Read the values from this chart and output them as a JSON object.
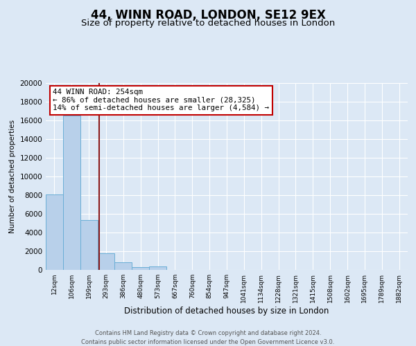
{
  "title": "44, WINN ROAD, LONDON, SE12 9EX",
  "subtitle": "Size of property relative to detached houses in London",
  "xlabel": "Distribution of detached houses by size in London",
  "ylabel": "Number of detached properties",
  "categories": [
    "12sqm",
    "106sqm",
    "199sqm",
    "293sqm",
    "386sqm",
    "480sqm",
    "573sqm",
    "667sqm",
    "760sqm",
    "854sqm",
    "947sqm",
    "1041sqm",
    "1134sqm",
    "1228sqm",
    "1321sqm",
    "1415sqm",
    "1508sqm",
    "1602sqm",
    "1695sqm",
    "1789sqm",
    "1882sqm"
  ],
  "values": [
    8100,
    16500,
    5300,
    1800,
    800,
    300,
    350,
    0,
    0,
    0,
    0,
    0,
    0,
    0,
    0,
    0,
    0,
    0,
    0,
    0,
    0
  ],
  "bar_color": "#b8d0ea",
  "bar_edge_color": "#6aaed6",
  "vline_x": 2.58,
  "vline_color": "#8b1a1a",
  "annotation_title": "44 WINN ROAD: 254sqm",
  "annotation_line1": "← 86% of detached houses are smaller (28,325)",
  "annotation_line2": "14% of semi-detached houses are larger (4,584) →",
  "annotation_box_color": "white",
  "annotation_box_edge": "#c00000",
  "ylim": [
    0,
    20000
  ],
  "yticks": [
    0,
    2000,
    4000,
    6000,
    8000,
    10000,
    12000,
    14000,
    16000,
    18000,
    20000
  ],
  "footer1": "Contains HM Land Registry data © Crown copyright and database right 2024.",
  "footer2": "Contains public sector information licensed under the Open Government Licence v3.0.",
  "bg_color": "#dce8f5",
  "plot_bg_color": "#dce8f5",
  "grid_color": "#ffffff",
  "title_fontsize": 12,
  "subtitle_fontsize": 9.5
}
